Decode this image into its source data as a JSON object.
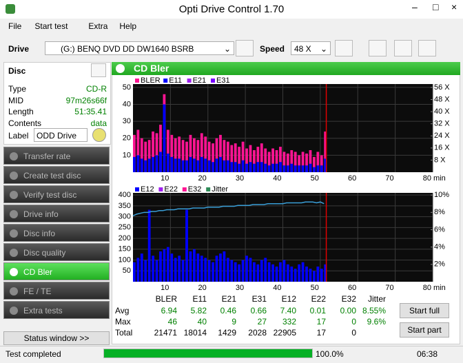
{
  "window": {
    "title": "Opti Drive Control 1.70"
  },
  "menu": [
    "File",
    "Start test",
    "Extra",
    "Help"
  ],
  "toolbar": {
    "drive_label": "Drive",
    "drive": "(G:)  BENQ DVD DD DW1640 BSRB",
    "speed_label": "Speed",
    "speed": "48 X"
  },
  "disc": {
    "title": "Disc",
    "rows": [
      [
        "Type",
        "CD-R"
      ],
      [
        "MID",
        "97m26s66f"
      ],
      [
        "Length",
        "51:35.41"
      ],
      [
        "Contents",
        "data"
      ]
    ],
    "label_label": "Label",
    "label_value": "ODD Drive"
  },
  "nav": {
    "items": [
      "Transfer rate",
      "Create test disc",
      "Verify test disc",
      "Drive info",
      "Disc info",
      "Disc quality",
      "CD Bler",
      "FE / TE",
      "Extra tests"
    ],
    "selected": 6
  },
  "status_window": "Status window >>",
  "panel_title": "CD Bler",
  "chart_data": [
    {
      "type": "bar",
      "x_unit": "min",
      "xlim": [
        0,
        80
      ],
      "xticks": [
        10,
        20,
        30,
        40,
        50,
        60,
        70,
        80
      ],
      "ylim": [
        0,
        52
      ],
      "yticks": [
        10,
        20,
        30,
        40,
        50
      ],
      "y2lim": [
        0,
        58.24
      ],
      "y2ticks": [
        {
          "value": 8,
          "label": "8 X"
        },
        {
          "value": 16,
          "label": "16 X"
        },
        {
          "value": 24,
          "label": "24 X"
        },
        {
          "value": 32,
          "label": "32 X"
        },
        {
          "value": 40,
          "label": "40 X"
        },
        {
          "value": 48,
          "label": "48 X"
        },
        {
          "value": 56,
          "label": "56 X"
        }
      ],
      "end": 51.6,
      "x": [
        0,
        1,
        2,
        3,
        4,
        5,
        6,
        7,
        8,
        9,
        10,
        11,
        12,
        13,
        14,
        15,
        16,
        17,
        18,
        19,
        20,
        21,
        22,
        23,
        24,
        25,
        26,
        27,
        28,
        29,
        30,
        31,
        32,
        33,
        34,
        35,
        36,
        37,
        38,
        39,
        40,
        41,
        42,
        43,
        44,
        45,
        46,
        47,
        48,
        49,
        50,
        51
      ],
      "series": [
        {
          "name": "BLER",
          "color": "#ff1493",
          "values": [
            22,
            25,
            20,
            18,
            19,
            24,
            23,
            28,
            46,
            25,
            22,
            20,
            21,
            19,
            18,
            22,
            20,
            19,
            23,
            21,
            18,
            17,
            20,
            22,
            19,
            18,
            16,
            17,
            15,
            18,
            14,
            16,
            13,
            15,
            17,
            14,
            12,
            14,
            13,
            15,
            12,
            11,
            13,
            12,
            10,
            12,
            11,
            13,
            9,
            12,
            10,
            24
          ]
        },
        {
          "name": "E11",
          "color": "#0000ff",
          "values": [
            9,
            10,
            8,
            7,
            8,
            9,
            10,
            12,
            40,
            11,
            9,
            8,
            8,
            7,
            7,
            9,
            8,
            7,
            9,
            8,
            7,
            6,
            8,
            9,
            7,
            7,
            6,
            6,
            5,
            7,
            5,
            6,
            5,
            6,
            6,
            5,
            4,
            5,
            5,
            6,
            4,
            4,
            5,
            4,
            4,
            4,
            4,
            5,
            3,
            4,
            4,
            8
          ]
        },
        {
          "name": "E21",
          "color": "#a020f0"
        },
        {
          "name": "E31",
          "color": "#7a00ff"
        }
      ]
    },
    {
      "type": "bar",
      "x_unit": "min",
      "xlim": [
        0,
        80
      ],
      "xticks": [
        10,
        20,
        30,
        40,
        50,
        60,
        70,
        80
      ],
      "ylim": [
        0,
        410
      ],
      "yticks": [
        50,
        100,
        150,
        200,
        250,
        300,
        350,
        400
      ],
      "y2lim": [
        0,
        10.25
      ],
      "y2ticks": [
        {
          "value": 2,
          "label": "2%"
        },
        {
          "value": 4,
          "label": "4%"
        },
        {
          "value": 6,
          "label": "6%"
        },
        {
          "value": 8,
          "label": "8%"
        },
        {
          "value": 10,
          "label": "10%"
        }
      ],
      "end": 51.6,
      "x": [
        0,
        1,
        2,
        3,
        4,
        5,
        6,
        7,
        8,
        9,
        10,
        11,
        12,
        13,
        14,
        15,
        16,
        17,
        18,
        19,
        20,
        21,
        22,
        23,
        24,
        25,
        26,
        27,
        28,
        29,
        30,
        31,
        32,
        33,
        34,
        35,
        36,
        37,
        38,
        39,
        40,
        41,
        42,
        43,
        44,
        45,
        46,
        47,
        48,
        49,
        50,
        51
      ],
      "series": [
        {
          "name": "E12",
          "color": "#0000ff",
          "values": [
            90,
            110,
            130,
            100,
            332,
            120,
            100,
            140,
            150,
            160,
            130,
            110,
            120,
            100,
            332,
            140,
            150,
            130,
            120,
            110,
            100,
            90,
            120,
            130,
            140,
            110,
            100,
            90,
            80,
            100,
            120,
            110,
            90,
            80,
            100,
            110,
            90,
            80,
            70,
            90,
            100,
            80,
            70,
            60,
            80,
            90,
            70,
            60,
            50,
            70,
            60,
            80
          ]
        },
        {
          "name": "E22",
          "color": "#a020f0"
        },
        {
          "name": "E32",
          "color": "#ff1493"
        },
        {
          "name": "Jitter",
          "color": "#3a9fd8",
          "legend_color": "#2e8b57",
          "axis": "y2",
          "line": true,
          "values": [
            7.6,
            7.8,
            7.9,
            8.0,
            8.0,
            8.1,
            8.1,
            8.2,
            8.2,
            8.3,
            8.3,
            8.3,
            8.4,
            8.4,
            8.4,
            8.4,
            8.5,
            8.5,
            8.5,
            8.5,
            8.6,
            8.6,
            8.6,
            8.6,
            8.7,
            8.7,
            8.7,
            8.7,
            8.8,
            8.8,
            8.8,
            8.8,
            8.9,
            8.9,
            8.9,
            8.9,
            9.0,
            9.0,
            9.0,
            9.0,
            9.0,
            9.1,
            9.1,
            9.1,
            9.1,
            9.1,
            9.2,
            9.2,
            9.2,
            9.1,
            9.2,
            9.0
          ]
        }
      ]
    }
  ],
  "stats": {
    "columns": [
      "BLER",
      "E11",
      "E21",
      "E31",
      "E12",
      "E22",
      "E32",
      "Jitter"
    ],
    "rows": [
      {
        "label": "Avg",
        "values": [
          "6.94",
          "5.82",
          "0.46",
          "0.66",
          "7.40",
          "0.01",
          "0.00",
          "8.55%"
        ]
      },
      {
        "label": "Max",
        "values": [
          "46",
          "40",
          "9",
          "27",
          "332",
          "17",
          "0",
          "9.6%"
        ]
      },
      {
        "label": "Total",
        "values": [
          "21471",
          "18014",
          "1429",
          "2028",
          "22905",
          "17",
          "0"
        ]
      }
    ]
  },
  "buttons": [
    "Start full",
    "Start part"
  ],
  "status": {
    "text": "Test completed",
    "progress": "100.0%",
    "time": "06:38"
  }
}
